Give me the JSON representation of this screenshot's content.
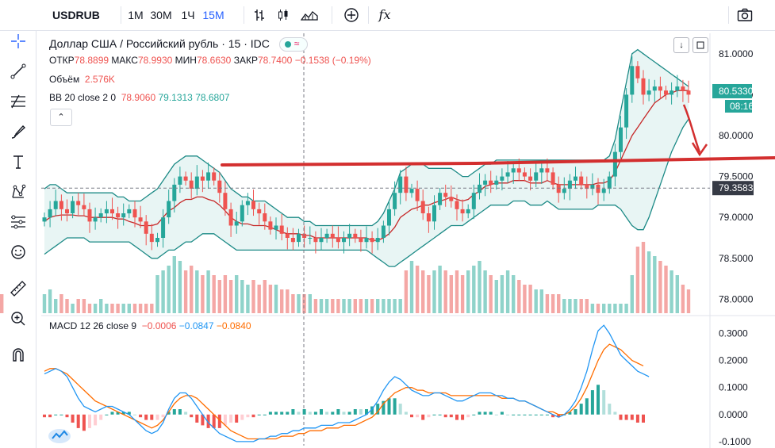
{
  "toolbar": {
    "symbol": "USDRUB",
    "timeframes": [
      "1M",
      "30M",
      "1Ч",
      "15M"
    ],
    "active_timeframe": "15M",
    "icons": [
      "bar-style-icon",
      "candles-icon",
      "area-icon",
      "add-compare-icon",
      "indicators-icon",
      "camera-icon"
    ],
    "fx_label": "fx"
  },
  "leftbar": {
    "tools": [
      "crosshair-icon",
      "trendline-icon",
      "fib-icon",
      "brush-icon",
      "text-icon",
      "pattern-icon",
      "prediction-icon",
      "emoji-icon",
      "ruler-icon",
      "zoom-icon",
      "magnet-icon"
    ]
  },
  "header": {
    "title": "Доллар США / Российский рубль · 15 · IDC",
    "ohlc": {
      "o_label": "ОТКР",
      "o": "78.8899",
      "h_label": "МАКС",
      "h": "78.9930",
      "l_label": "МИН",
      "l": "78.6630",
      "c_label": "ЗАКР",
      "c": "78.7400",
      "change": "−0.1538 (−0.19%)"
    },
    "volume_label": "Объём",
    "volume_value": "2.576K",
    "bb_label": "BB 20 close 2 0",
    "bb_basis": "78.9060",
    "bb_upper": "79.1313",
    "bb_lower": "78.6807",
    "macd_label": "MACD 12 26 close 9",
    "macd_hist": "−0.0006",
    "macd_line": "−0.0847",
    "macd_signal": "−0.0840",
    "collapse_glyph": "⌃"
  },
  "colors": {
    "up": "#26a69a",
    "down": "#ef5350",
    "bb_fill": "#e8f5f4",
    "bb_line": "#1c8a86",
    "basis": "#c62828",
    "macd": "#2196f3",
    "signal": "#ff6d00",
    "drawing": "#d32f2f"
  },
  "chart_data": [
    {
      "type": "candlestick",
      "title": "Доллар США / Российский рубль · 15 · IDC",
      "yaxis_ticks": [
        "81.0000",
        "80.5000",
        "80.0000",
        "79.5000",
        "79.0000",
        "78.5000",
        "78.0000"
      ],
      "ylim": [
        77.8,
        81.25
      ],
      "last_price": "80.5330",
      "countdown": "08:16",
      "crosshair_price": "79.3583",
      "close_series": [
        79.0,
        79.1,
        79.2,
        79.1,
        79.05,
        79.2,
        79.15,
        79.1,
        78.95,
        79.0,
        79.05,
        79.1,
        79.05,
        79.0,
        79.05,
        79.1,
        79.0,
        78.95,
        78.8,
        78.7,
        78.75,
        79.0,
        79.2,
        79.4,
        79.5,
        79.45,
        79.35,
        79.5,
        79.45,
        79.55,
        79.45,
        79.3,
        79.1,
        78.9,
        78.95,
        79.15,
        79.2,
        79.1,
        79.05,
        78.95,
        78.85,
        78.9,
        78.8,
        78.75,
        78.7,
        78.8,
        78.75,
        78.75,
        78.7,
        78.75,
        78.8,
        78.75,
        78.7,
        78.75,
        78.8,
        78.75,
        78.7,
        78.75,
        78.7,
        78.75,
        78.9,
        79.1,
        79.3,
        79.5,
        79.3,
        79.35,
        79.2,
        79.05,
        78.95,
        79.15,
        79.3,
        79.25,
        79.2,
        79.1,
        79.05,
        79.1,
        79.3,
        79.4,
        79.45,
        79.4,
        79.45,
        79.5,
        79.55,
        79.6,
        79.55,
        79.5,
        79.45,
        79.55,
        79.6,
        79.55,
        79.4,
        79.3,
        79.35,
        79.45,
        79.5,
        79.4,
        79.35,
        79.4,
        79.3,
        79.35,
        79.5,
        79.8,
        80.1,
        80.5,
        80.85,
        80.7,
        80.5,
        80.55,
        80.6,
        80.55,
        80.5,
        80.55,
        80.6,
        80.55,
        80.5
      ],
      "bb_upper_series": [
        79.35,
        79.4,
        79.4,
        79.35,
        79.3,
        79.3,
        79.3,
        79.3,
        79.3,
        79.3,
        79.3,
        79.3,
        79.3,
        79.25,
        79.25,
        79.2,
        79.2,
        79.2,
        79.25,
        79.3,
        79.35,
        79.45,
        79.55,
        79.65,
        79.7,
        79.75,
        79.75,
        79.75,
        79.7,
        79.65,
        79.6,
        79.55,
        79.45,
        79.35,
        79.3,
        79.25,
        79.25,
        79.2,
        79.2,
        79.2,
        79.15,
        79.1,
        79.05,
        79.0,
        79.0,
        79.0,
        78.95,
        78.95,
        78.9,
        78.9,
        78.9,
        78.9,
        78.9,
        78.9,
        78.9,
        78.9,
        78.9,
        78.9,
        78.9,
        78.95,
        79.05,
        79.2,
        79.35,
        79.55,
        79.6,
        79.65,
        79.65,
        79.65,
        79.6,
        79.6,
        79.6,
        79.6,
        79.6,
        79.55,
        79.5,
        79.5,
        79.55,
        79.6,
        79.65,
        79.65,
        79.7,
        79.7,
        79.7,
        79.7,
        79.7,
        79.7,
        79.7,
        79.7,
        79.7,
        79.7,
        79.7,
        79.7,
        79.7,
        79.7,
        79.7,
        79.7,
        79.7,
        79.7,
        79.7,
        79.7,
        79.75,
        79.95,
        80.3,
        80.65,
        81.0,
        81.05,
        81.0,
        80.95,
        80.9,
        80.85,
        80.8,
        80.75,
        80.7,
        80.65,
        80.6
      ],
      "bb_lower_series": [
        78.55,
        78.6,
        78.65,
        78.7,
        78.75,
        78.75,
        78.75,
        78.75,
        78.7,
        78.7,
        78.7,
        78.7,
        78.7,
        78.7,
        78.7,
        78.7,
        78.65,
        78.6,
        78.55,
        78.5,
        78.5,
        78.55,
        78.6,
        78.6,
        78.65,
        78.7,
        78.7,
        78.75,
        78.8,
        78.8,
        78.8,
        78.75,
        78.7,
        78.65,
        78.6,
        78.6,
        78.6,
        78.6,
        78.6,
        78.6,
        78.6,
        78.6,
        78.6,
        78.6,
        78.6,
        78.6,
        78.6,
        78.6,
        78.6,
        78.6,
        78.6,
        78.6,
        78.6,
        78.6,
        78.6,
        78.6,
        78.6,
        78.6,
        78.55,
        78.5,
        78.45,
        78.4,
        78.4,
        78.45,
        78.5,
        78.55,
        78.6,
        78.65,
        78.7,
        78.75,
        78.8,
        78.85,
        78.9,
        78.9,
        78.9,
        78.95,
        79.0,
        79.05,
        79.1,
        79.15,
        79.15,
        79.15,
        79.15,
        79.2,
        79.2,
        79.2,
        79.15,
        79.15,
        79.15,
        79.2,
        79.15,
        79.1,
        79.1,
        79.1,
        79.1,
        79.1,
        79.1,
        79.1,
        79.15,
        79.15,
        79.15,
        79.15,
        79.1,
        79.0,
        78.9,
        78.85,
        78.85,
        79.0,
        79.2,
        79.4,
        79.6,
        79.8,
        79.95,
        80.1,
        80.2
      ],
      "bb_basis_series": [
        78.95,
        79.0,
        79.02,
        79.03,
        79.03,
        79.03,
        79.02,
        79.02,
        79.0,
        79.0,
        79.0,
        79.0,
        79.0,
        78.98,
        78.98,
        78.95,
        78.93,
        78.9,
        78.9,
        78.9,
        78.92,
        79.0,
        79.08,
        79.12,
        79.18,
        79.22,
        79.22,
        79.25,
        79.25,
        79.22,
        79.2,
        79.15,
        79.08,
        79.0,
        78.95,
        78.92,
        78.92,
        78.9,
        78.9,
        78.9,
        78.88,
        78.85,
        78.82,
        78.8,
        78.8,
        78.8,
        78.78,
        78.78,
        78.75,
        78.75,
        78.75,
        78.75,
        78.75,
        78.75,
        78.75,
        78.75,
        78.75,
        78.75,
        78.72,
        78.72,
        78.75,
        78.8,
        78.88,
        79.0,
        79.05,
        79.1,
        79.12,
        79.15,
        79.15,
        79.18,
        79.2,
        79.22,
        79.25,
        79.22,
        79.2,
        79.22,
        79.28,
        79.32,
        79.38,
        79.4,
        79.42,
        79.42,
        79.42,
        79.45,
        79.45,
        79.45,
        79.42,
        79.42,
        79.42,
        79.45,
        79.42,
        79.4,
        79.4,
        79.4,
        79.4,
        79.4,
        79.4,
        79.4,
        79.42,
        79.42,
        79.45,
        79.55,
        79.7,
        79.85,
        80.0,
        80.1,
        80.2,
        80.3,
        80.4,
        80.45,
        80.5,
        80.52,
        80.55,
        80.55,
        80.55
      ],
      "volume_series": [
        4,
        5,
        3,
        4,
        3,
        2,
        3,
        3,
        2,
        2,
        3,
        2,
        2,
        2,
        2,
        2,
        2,
        2,
        2,
        2,
        8,
        9,
        10,
        12,
        11,
        9,
        10,
        9,
        8,
        9,
        8,
        7,
        8,
        7,
        8,
        7,
        6,
        7,
        6,
        7,
        6,
        6,
        5,
        5,
        4,
        4,
        4,
        4,
        3,
        3,
        3,
        3,
        3,
        3,
        3,
        3,
        3,
        3,
        3,
        3,
        3,
        3,
        3,
        3,
        9,
        11,
        10,
        9,
        8,
        9,
        10,
        9,
        8,
        9,
        8,
        9,
        10,
        11,
        9,
        8,
        7,
        8,
        9,
        8,
        7,
        6,
        6,
        5,
        5,
        4,
        4,
        4,
        3,
        3,
        3,
        3,
        3,
        2,
        2,
        2,
        2,
        2,
        2,
        2,
        8,
        14,
        15,
        13,
        12,
        11,
        10,
        9,
        8,
        6,
        5,
        4
      ],
      "macd_line_series": [
        0.15,
        0.16,
        0.17,
        0.16,
        0.14,
        0.1,
        0.06,
        0.03,
        0.02,
        0.01,
        0.02,
        0.03,
        0.03,
        0.02,
        0.01,
        0.0,
        -0.02,
        -0.04,
        -0.06,
        -0.07,
        -0.06,
        -0.03,
        0.02,
        0.06,
        0.08,
        0.08,
        0.06,
        0.03,
        0.0,
        -0.03,
        -0.05,
        -0.07,
        -0.08,
        -0.09,
        -0.1,
        -0.1,
        -0.1,
        -0.1,
        -0.09,
        -0.09,
        -0.08,
        -0.08,
        -0.07,
        -0.07,
        -0.06,
        -0.06,
        -0.05,
        -0.05,
        -0.05,
        -0.04,
        -0.04,
        -0.04,
        -0.03,
        -0.03,
        -0.03,
        -0.02,
        -0.01,
        0.0,
        0.02,
        0.05,
        0.09,
        0.12,
        0.14,
        0.13,
        0.11,
        0.09,
        0.08,
        0.07,
        0.07,
        0.08,
        0.08,
        0.07,
        0.06,
        0.05,
        0.05,
        0.06,
        0.07,
        0.08,
        0.08,
        0.08,
        0.07,
        0.07,
        0.06,
        0.06,
        0.05,
        0.05,
        0.04,
        0.03,
        0.02,
        0.01,
        0.0,
        -0.01,
        0.0,
        0.02,
        0.05,
        0.1,
        0.16,
        0.24,
        0.31,
        0.33,
        0.3,
        0.26,
        0.22,
        0.2,
        0.18,
        0.16,
        0.15,
        0.14
      ],
      "macd_signal_series": [
        0.16,
        0.17,
        0.17,
        0.16,
        0.15,
        0.13,
        0.11,
        0.09,
        0.07,
        0.05,
        0.04,
        0.03,
        0.02,
        0.01,
        0.0,
        -0.01,
        -0.02,
        -0.03,
        -0.04,
        -0.05,
        -0.04,
        -0.02,
        0.01,
        0.04,
        0.06,
        0.07,
        0.07,
        0.06,
        0.04,
        0.02,
        0.0,
        -0.02,
        -0.04,
        -0.06,
        -0.07,
        -0.08,
        -0.09,
        -0.09,
        -0.09,
        -0.09,
        -0.09,
        -0.09,
        -0.08,
        -0.08,
        -0.08,
        -0.07,
        -0.07,
        -0.06,
        -0.06,
        -0.06,
        -0.05,
        -0.05,
        -0.05,
        -0.04,
        -0.04,
        -0.04,
        -0.03,
        -0.02,
        -0.01,
        0.01,
        0.04,
        0.06,
        0.08,
        0.09,
        0.1,
        0.1,
        0.09,
        0.09,
        0.08,
        0.08,
        0.08,
        0.08,
        0.07,
        0.07,
        0.07,
        0.07,
        0.07,
        0.07,
        0.07,
        0.07,
        0.07,
        0.06,
        0.06,
        0.06,
        0.05,
        0.05,
        0.04,
        0.03,
        0.02,
        0.01,
        0.01,
        0.0,
        0.0,
        0.01,
        0.03,
        0.06,
        0.1,
        0.15,
        0.2,
        0.24,
        0.26,
        0.25,
        0.24,
        0.22,
        0.2,
        0.19,
        0.18
      ]
    },
    {
      "type": "bar",
      "title": "Объём",
      "yaxis_ticks": []
    },
    {
      "type": "line",
      "title": "MACD 12 26 close 9",
      "yaxis_ticks": [
        "0.3000",
        "0.2000",
        "0.1000",
        "0.0000",
        "-0.1000"
      ],
      "ylim": [
        -0.115,
        0.36
      ]
    }
  ]
}
